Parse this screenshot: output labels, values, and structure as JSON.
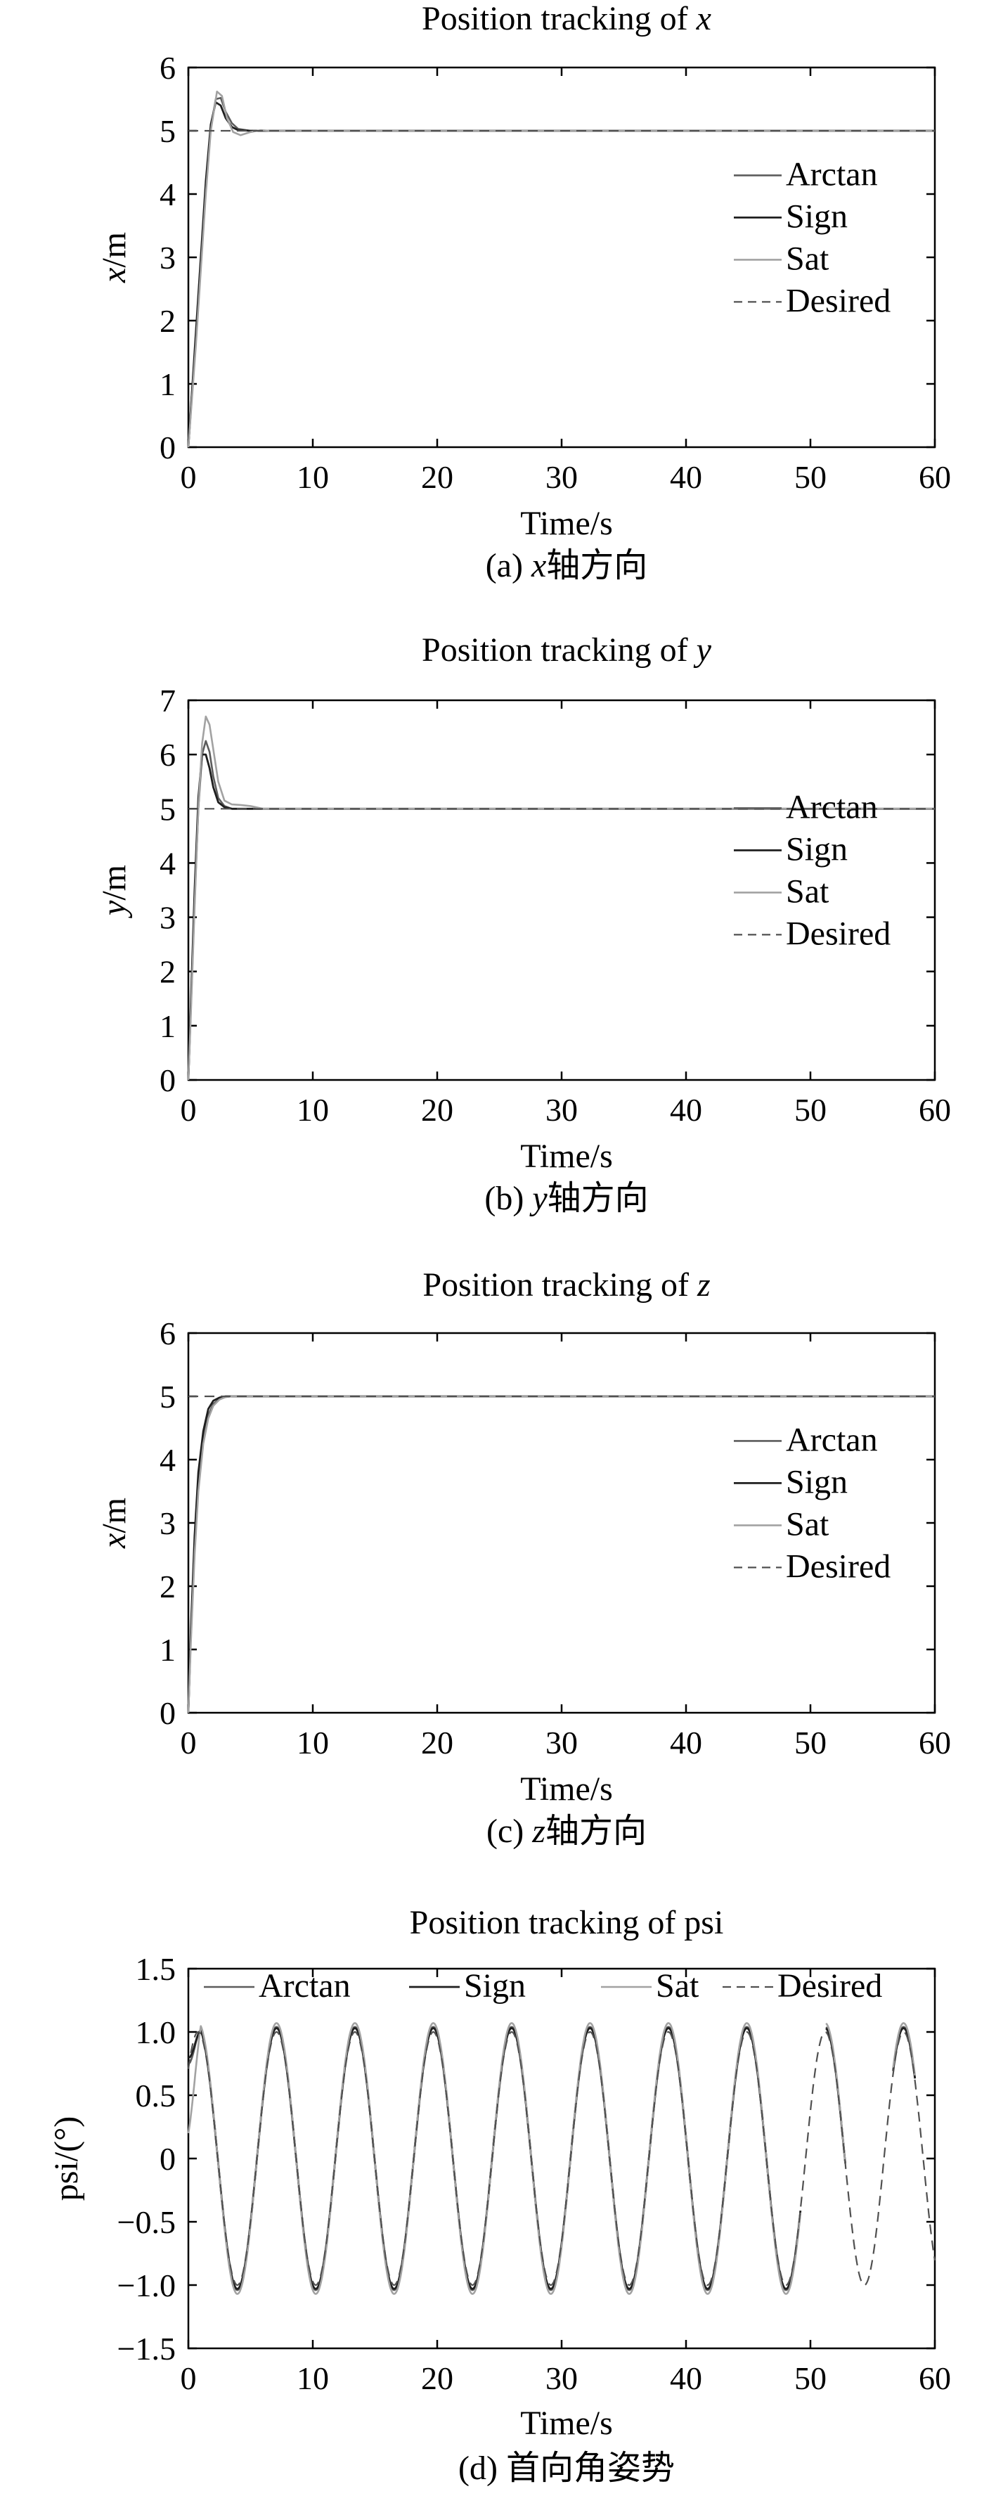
{
  "colors": {
    "arctan": "#5c5c5c",
    "sign": "#1e1e1e",
    "sat": "#a2a2a2",
    "desired": "#505050",
    "axis": "#000000"
  },
  "chart_data": [
    {
      "type": "line",
      "title_text": "Position tracking of ",
      "title_var": "x",
      "xlabel": "Time/s",
      "ylabel_var": "x",
      "ylabel_unit": "/m",
      "caption": {
        "prefix": "(a) ",
        "var": "x",
        "suffix": "轴方向"
      },
      "xlim": [
        0,
        60
      ],
      "ylim": [
        0,
        6
      ],
      "xticks": [
        0,
        10,
        20,
        30,
        40,
        50,
        60
      ],
      "yticks": [
        0,
        1,
        2,
        3,
        4,
        5,
        6
      ],
      "ytick_labels": [
        "0",
        "1",
        "2",
        "3",
        "4",
        "5",
        "6"
      ],
      "legend": {
        "placement": "right",
        "entries": [
          "Arctan",
          "Sign",
          "Sat",
          "Desired"
        ]
      },
      "grid": false,
      "series": [
        {
          "name": "Arctan",
          "x": [
            0,
            0.3,
            0.6,
            1,
            1.4,
            1.8,
            2.2,
            2.6,
            3,
            3.5,
            4,
            5,
            6,
            8,
            60
          ],
          "y": [
            0,
            0.9,
            1.7,
            2.9,
            4.1,
            5.05,
            5.5,
            5.52,
            5.3,
            5.12,
            5.03,
            5.0,
            5.0,
            5.0,
            5.0
          ]
        },
        {
          "name": "Sign",
          "x": [
            0,
            0.3,
            0.6,
            1,
            1.4,
            1.8,
            2.2,
            2.6,
            3,
            3.5,
            4,
            5,
            6,
            60
          ],
          "y": [
            0,
            0.9,
            1.8,
            3.0,
            4.2,
            5.1,
            5.45,
            5.4,
            5.2,
            5.06,
            5.01,
            5.0,
            5.0,
            5.0
          ]
        },
        {
          "name": "Sat",
          "x": [
            0,
            0.3,
            0.6,
            1,
            1.4,
            1.8,
            2.3,
            2.7,
            3.1,
            3.6,
            4.2,
            5,
            5.8,
            6.5,
            8,
            60
          ],
          "y": [
            0,
            0.8,
            1.6,
            2.8,
            4.0,
            5.0,
            5.62,
            5.55,
            5.2,
            4.98,
            4.93,
            4.98,
            5.01,
            5.0,
            5.0,
            5.0
          ]
        },
        {
          "name": "Desired",
          "x": [
            0,
            60
          ],
          "y": [
            5,
            5
          ],
          "dashed": true
        }
      ]
    },
    {
      "type": "line",
      "title_text": "Position tracking of ",
      "title_var": "y",
      "xlabel": "Time/s",
      "ylabel_var": "y",
      "ylabel_unit": "/m",
      "caption": {
        "prefix": "(b) ",
        "var": "y",
        "suffix": "轴方向"
      },
      "xlim": [
        0,
        60
      ],
      "ylim": [
        0,
        7
      ],
      "xticks": [
        0,
        10,
        20,
        30,
        40,
        50,
        60
      ],
      "yticks": [
        0,
        1,
        2,
        3,
        4,
        5,
        6,
        7
      ],
      "ytick_labels": [
        "0",
        "1",
        "2",
        "3",
        "4",
        "5",
        "6",
        "7"
      ],
      "legend": {
        "placement": "right",
        "entries": [
          "Arctan",
          "Sign",
          "Sat",
          "Desired"
        ]
      },
      "grid": false,
      "series": [
        {
          "name": "Arctan",
          "x": [
            0,
            0.2,
            0.5,
            0.8,
            1.1,
            1.4,
            1.7,
            2.0,
            2.4,
            2.9,
            3.5,
            4.2,
            5,
            6,
            60
          ],
          "y": [
            0,
            1.3,
            3.3,
            5.0,
            6.0,
            6.25,
            6.05,
            5.6,
            5.2,
            5.05,
            5.0,
            5.0,
            5.0,
            5.0,
            5.0
          ]
        },
        {
          "name": "Sign",
          "x": [
            0,
            0.2,
            0.5,
            0.8,
            1.1,
            1.4,
            1.7,
            2.0,
            2.4,
            2.9,
            3.5,
            4.5,
            60
          ],
          "y": [
            0,
            1.4,
            3.5,
            5.2,
            6.0,
            6.0,
            5.75,
            5.4,
            5.12,
            5.03,
            5.0,
            5.0,
            5.0
          ]
        },
        {
          "name": "Sat",
          "x": [
            0,
            0.2,
            0.5,
            0.8,
            1.1,
            1.4,
            1.7,
            2.0,
            2.4,
            2.9,
            3.5,
            4.2,
            5,
            6,
            60
          ],
          "y": [
            0,
            1.2,
            3.2,
            5.0,
            6.2,
            6.7,
            6.55,
            6.1,
            5.5,
            5.15,
            5.08,
            5.07,
            5.05,
            5.0,
            5.0
          ]
        },
        {
          "name": "Desired",
          "x": [
            0,
            60
          ],
          "y": [
            5,
            5
          ],
          "dashed": true
        }
      ]
    },
    {
      "type": "line",
      "title_text": "Position tracking of ",
      "title_var": "z",
      "xlabel": "Time/s",
      "ylabel_var": "x",
      "ylabel_unit": "/m",
      "caption": {
        "prefix": "(c) ",
        "var": "z",
        "suffix": "轴方向"
      },
      "xlim": [
        0,
        60
      ],
      "ylim": [
        0,
        6
      ],
      "xticks": [
        0,
        10,
        20,
        30,
        40,
        50,
        60
      ],
      "yticks": [
        0,
        1,
        2,
        3,
        4,
        5,
        6
      ],
      "ytick_labels": [
        "0",
        "1",
        "2",
        "3",
        "4",
        "5",
        "6"
      ],
      "legend": {
        "placement": "right",
        "entries": [
          "Arctan",
          "Sign",
          "Sat",
          "Desired"
        ]
      },
      "grid": false,
      "series": [
        {
          "name": "Arctan",
          "x": [
            0,
            0.2,
            0.5,
            0.8,
            1.2,
            1.6,
            2.0,
            2.5,
            3.0,
            3.5,
            4,
            5,
            60
          ],
          "y": [
            0,
            1.2,
            2.6,
            3.6,
            4.3,
            4.7,
            4.88,
            4.96,
            4.99,
            5.0,
            5.0,
            5.0,
            5.0
          ]
        },
        {
          "name": "Sign",
          "x": [
            0,
            0.2,
            0.5,
            0.8,
            1.2,
            1.6,
            2.0,
            2.5,
            3.0,
            3.5,
            60
          ],
          "y": [
            0,
            1.3,
            2.8,
            3.8,
            4.45,
            4.8,
            4.93,
            4.98,
            5.0,
            5.0,
            5.0
          ]
        },
        {
          "name": "Sat",
          "x": [
            0,
            0.2,
            0.5,
            0.8,
            1.2,
            1.6,
            2.0,
            2.5,
            3.0,
            3.5,
            4,
            5,
            60
          ],
          "y": [
            0,
            1.1,
            2.5,
            3.5,
            4.25,
            4.65,
            4.85,
            4.95,
            4.99,
            5.0,
            5.0,
            5.0,
            5.0
          ]
        },
        {
          "name": "Desired",
          "x": [
            0,
            60
          ],
          "y": [
            5,
            5
          ],
          "dashed": true
        }
      ]
    },
    {
      "type": "line",
      "title_text": "Position tracking of psi",
      "title_var": "",
      "xlabel": "Time/s",
      "ylabel_var": "",
      "ylabel_unit": "psi/(°)",
      "caption": {
        "prefix": "(d) ",
        "var": "",
        "suffix": "首向角姿势"
      },
      "xlim": [
        0,
        60
      ],
      "ylim": [
        -1.5,
        1.5
      ],
      "xticks": [
        0,
        10,
        20,
        30,
        40,
        50,
        60
      ],
      "yticks": [
        -1.5,
        -1.0,
        -0.5,
        0,
        0.5,
        1.0,
        1.5
      ],
      "ytick_labels": [
        "−1.5",
        "−1.0",
        "−0.5",
        "0",
        "0.5",
        "1.0",
        "1.5"
      ],
      "legend": {
        "placement": "top",
        "entries": [
          "Arctan",
          "Sign",
          "Sat",
          "Desired"
        ]
      },
      "grid": false,
      "sine": {
        "amplitude": 1.05,
        "period": 6.3,
        "phase_shift": 0.0,
        "gaps": [
          [
            49.2,
            51.2
          ],
          [
            52.8,
            56.6
          ],
          [
            58.4,
            60.0
          ]
        ]
      },
      "series": [
        {
          "name": "Arctan",
          "amplitude": 1.04,
          "start_y": 0.75
        },
        {
          "name": "Sign",
          "amplitude": 1.03,
          "start_y": 0.8
        },
        {
          "name": "Sat",
          "amplitude": 1.07,
          "start_y": 0.2
        },
        {
          "name": "Desired",
          "amplitude": 1.0,
          "dashed": true
        }
      ]
    }
  ]
}
